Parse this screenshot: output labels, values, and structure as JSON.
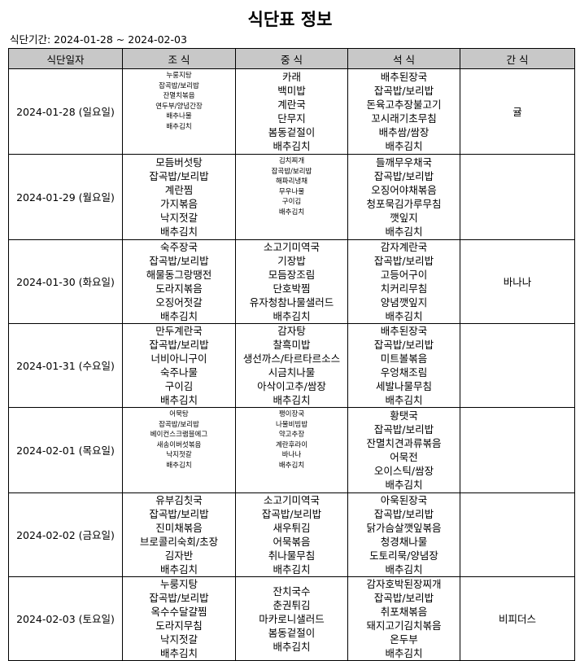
{
  "title": "식단표 정보",
  "period": "식단기간: 2024-01-28 ~ 2024-02-03",
  "headers": [
    "식단일자",
    "조 식",
    "중 식",
    "석 식",
    "간 식"
  ],
  "rows": [
    {
      "date": "2024-01-28 (일요일)",
      "breakfast": [
        "누룽지탕",
        "잡곡밥/보리밥",
        "잔멸치볶음",
        "연두부/양념간장",
        "배추나물",
        "배추김치"
      ],
      "lunch": [
        "카래",
        "백미밥",
        "계란국",
        "단무지",
        "봄동겉절이",
        "배추김치"
      ],
      "dinner": [
        "배추된장국",
        "잡곡밥/보리밥",
        "돈육고추장불고기",
        "꼬시래기초무침",
        "배추쌈/쌈장",
        "배추김치"
      ],
      "snack": "귤"
    },
    {
      "date": "2024-01-29 (월요일)",
      "breakfast": [
        "모듬버섯탕",
        "잡곡밥/보리밥",
        "계란찜",
        "가지볶음",
        "낙지젓갈",
        "배추김치"
      ],
      "lunch": [
        "김치찌개",
        "잡곡밥/보리밥",
        "해파리냉채",
        "무우나물",
        "구이김",
        "배추김치"
      ],
      "dinner": [
        "들깨무우채국",
        "잡곡밥/보리밥",
        "오징어야채볶음",
        "청포묵김가루무침",
        "깻잎지",
        "배추김치"
      ],
      "snack": ""
    },
    {
      "date": "2024-01-30 (화요일)",
      "breakfast": [
        "숙주장국",
        "잡곡밥/보리밥",
        "해물동그랑땡전",
        "도라지볶음",
        "오징어젓갈",
        "배추김치"
      ],
      "lunch": [
        "소고기미역국",
        "기장밥",
        "모듬장조림",
        "단호박찜",
        "유자청참나물샐러드",
        "배추김치"
      ],
      "dinner": [
        "감자계란국",
        "잡곡밥/보리밥",
        "고등어구이",
        "치커리무침",
        "양념깻잎지",
        "배추김치"
      ],
      "snack": "바나나"
    },
    {
      "date": "2024-01-31 (수요일)",
      "breakfast": [
        "만두계란국",
        "잡곡밥/보리밥",
        "너비아니구이",
        "숙주나물",
        "구이김",
        "배추김치"
      ],
      "lunch": [
        "감자탕",
        "찰흑미밥",
        "생선까스/타르타르소스",
        "시금치나물",
        "아삭이고추/쌈장",
        "배추김치"
      ],
      "dinner": [
        "배추된장국",
        "잡곡밥/보리밥",
        "미트볼볶음",
        "우엉채조림",
        "세발나물무침",
        "배추김치"
      ],
      "snack": ""
    },
    {
      "date": "2024-02-01 (목요일)",
      "breakfast": [
        "어묵탕",
        "잡곡밥/보리밥",
        "베이컨스크램블에그",
        "새송이버섯볶음",
        "낙지젓갈",
        "배추김치"
      ],
      "lunch": [
        "팽이장국",
        "나물비빔밥",
        "약고추장",
        "계란후라이",
        "바나나",
        "배추김치"
      ],
      "dinner": [
        "황탯국",
        "잡곡밥/보리밥",
        "잔멸치견과류볶음",
        "어묵전",
        "오이스틱/쌈장",
        "배추김치"
      ],
      "snack": ""
    },
    {
      "date": "2024-02-02 (금요일)",
      "breakfast": [
        "유부김칫국",
        "잡곡밥/보리밥",
        "진미채볶음",
        "브로콜리숙회/초장",
        "김자반",
        "배추김치"
      ],
      "lunch": [
        "소고기미역국",
        "잡곡밥/보리밥",
        "새우튀김",
        "어묵볶음",
        "취나물무침",
        "배추김치"
      ],
      "dinner": [
        "아욱된장국",
        "잡곡밥/보리밥",
        "닭가슴살깻잎볶음",
        "청경채나물",
        "도토리묵/양념장",
        "배추김치"
      ],
      "snack": ""
    },
    {
      "date": "2024-02-03 (토요일)",
      "breakfast": [
        "누룽지탕",
        "잡곡밥/보리밥",
        "옥수수달걀찜",
        "도라지무침",
        "낙지젓갈",
        "배추김치"
      ],
      "lunch": [
        "잔치국수",
        "춘권튀김",
        "마카로니샐러드",
        "봄동겉절이",
        "배추김치"
      ],
      "dinner": [
        "감자호박된장찌개",
        "잡곡밥/보리밥",
        "취포채볶음",
        "돼지고기김치볶음",
        "온두부",
        "배추김치"
      ],
      "snack": "비피더스"
    }
  ]
}
